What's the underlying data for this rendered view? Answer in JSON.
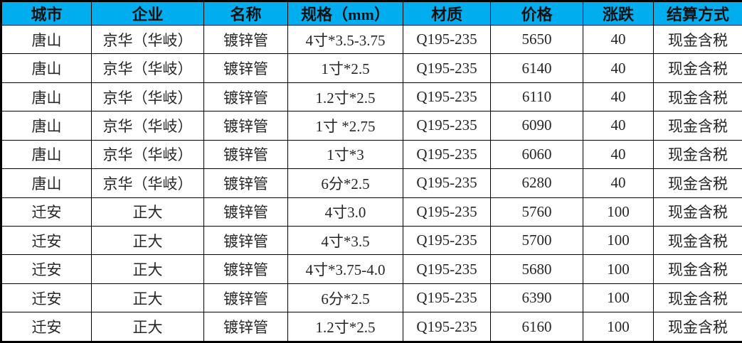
{
  "header_bg_color": "#00AEEF",
  "border_color": "#000000",
  "table": {
    "headers": {
      "city": "城市",
      "company": "企业",
      "name": "名称",
      "spec": "规格（mm）",
      "material": "材质",
      "price": "价格",
      "change": "涨跌",
      "settlement": "结算方式"
    },
    "rows": [
      [
        "唐山",
        "京华（华岐）",
        "镀锌管",
        "4寸*3.5-3.75",
        "Q195-235",
        "5650",
        "40",
        "现金含税"
      ],
      [
        "唐山",
        "京华（华岐）",
        "镀锌管",
        "1寸*2.5",
        "Q195-235",
        "6140",
        "40",
        "现金含税"
      ],
      [
        "唐山",
        "京华（华岐）",
        "镀锌管",
        "1.2寸*2.5",
        "Q195-235",
        "6110",
        "40",
        "现金含税"
      ],
      [
        "唐山",
        "京华（华岐）",
        "镀锌管",
        "1寸 *2.75",
        "Q195-235",
        "6090",
        "40",
        "现金含税"
      ],
      [
        "唐山",
        "京华（华岐）",
        "镀锌管",
        "1寸*3",
        "Q195-235",
        "6060",
        "40",
        "现金含税"
      ],
      [
        "唐山",
        "京华（华岐）",
        "镀锌管",
        "6分*2.5",
        "Q195-235",
        "6280",
        "40",
        "现金含税"
      ],
      [
        "迁安",
        "正大",
        "镀锌管",
        "4寸3.0",
        "Q195-235",
        "5760",
        "100",
        "现金含税"
      ],
      [
        "迁安",
        "正大",
        "镀锌管",
        "4寸*3.5",
        "Q195-235",
        "5700",
        "100",
        "现金含税"
      ],
      [
        "迁安",
        "正大",
        "镀锌管",
        "4寸*3.75-4.0",
        "Q195-235",
        "5680",
        "100",
        "现金含税"
      ],
      [
        "迁安",
        "正大",
        "镀锌管",
        "6分*2.5",
        "Q195-235",
        "6390",
        "100",
        "现金含税"
      ],
      [
        "迁安",
        "正大",
        "镀锌管",
        "1.2寸*2.5",
        "Q195-235",
        "6160",
        "100",
        "现金含税"
      ]
    ]
  }
}
